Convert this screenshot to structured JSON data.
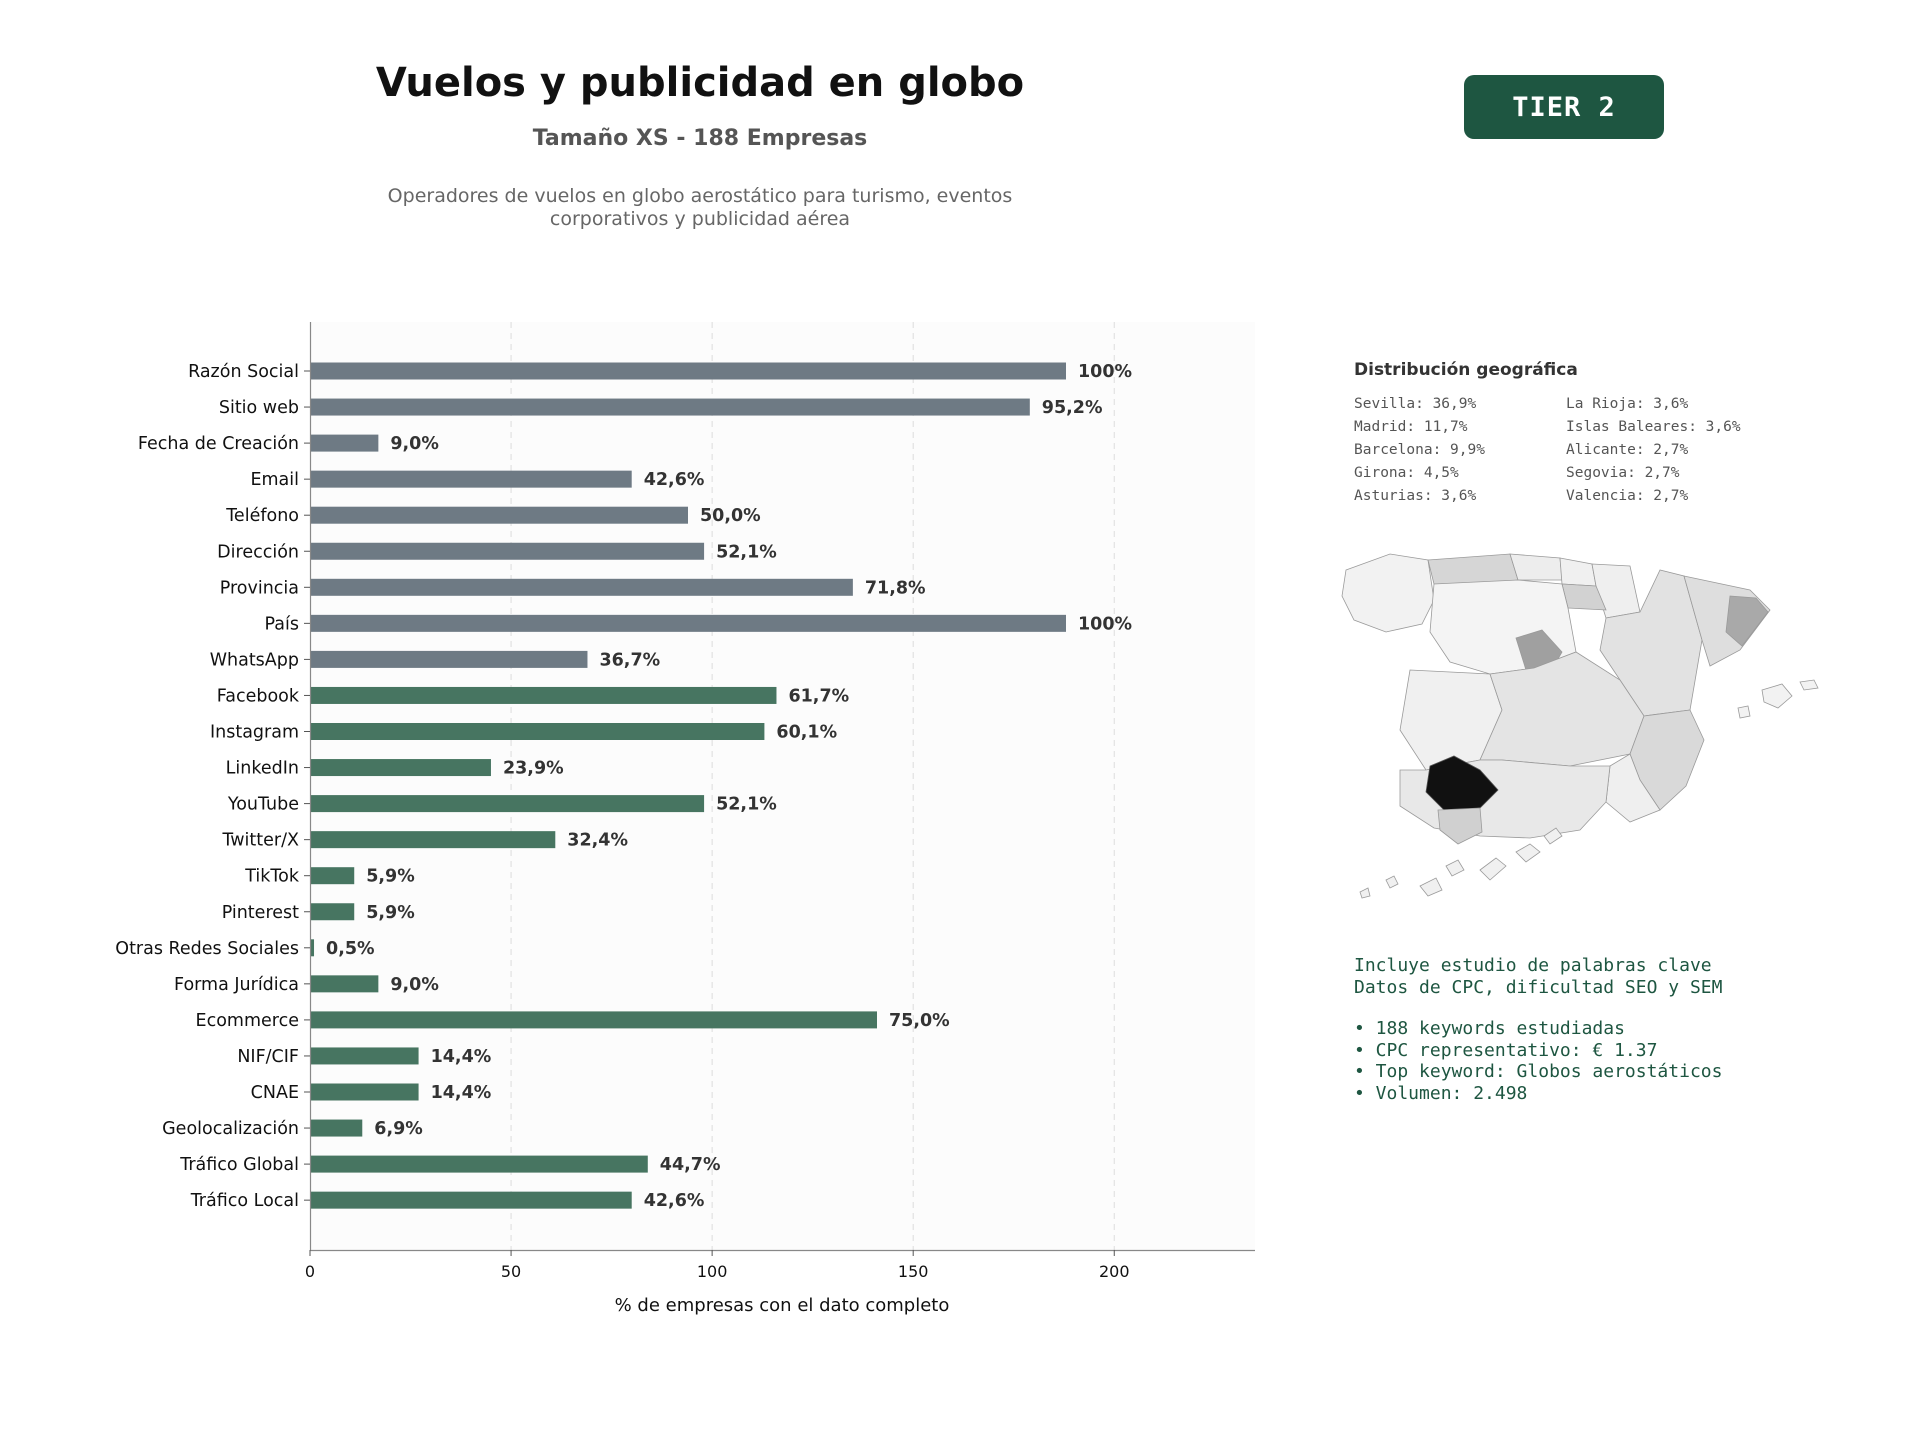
{
  "header": {
    "title": "Vuelos y publicidad en globo",
    "subtitle": "Tamaño XS - 188 Empresas",
    "description": "Operadores de vuelos en globo aerostático para turismo, eventos corporativos y publicidad aérea",
    "tier_label": "TIER 2"
  },
  "colors": {
    "basic_bar": "#6e7a84",
    "digital_bar": "#477561",
    "accent": "#1e5641"
  },
  "chart_data": {
    "type": "bar",
    "orientation": "horizontal",
    "categories": [
      "Razón Social",
      "Sitio web",
      "Fecha de Creación",
      "Email",
      "Teléfono",
      "Dirección",
      "Provincia",
      "País",
      "WhatsApp",
      "Facebook",
      "Instagram",
      "LinkedIn",
      "YouTube",
      "Twitter/X",
      "TikTok",
      "Pinterest",
      "Otras Redes Sociales",
      "Forma Jurídica",
      "Ecommerce",
      "NIF/CIF",
      "CNAE",
      "Geolocalización",
      "Tráfico Global",
      "Tráfico Local"
    ],
    "values": [
      188,
      179,
      17,
      80,
      94,
      98,
      135,
      188,
      69,
      116,
      113,
      45,
      98,
      61,
      11,
      11,
      1,
      17,
      141,
      27,
      27,
      13,
      84,
      80
    ],
    "value_labels": [
      "100%",
      "95,2%",
      "9,0%",
      "42,6%",
      "50,0%",
      "52,1%",
      "71,8%",
      "100%",
      "36,7%",
      "61,7%",
      "60,1%",
      "23,9%",
      "52,1%",
      "32,4%",
      "5,9%",
      "5,9%",
      "0,5%",
      "9,0%",
      "75,0%",
      "14,4%",
      "14,4%",
      "6,9%",
      "44,7%",
      "42,6%"
    ],
    "color_groups": [
      "basic",
      "basic",
      "basic",
      "basic",
      "basic",
      "basic",
      "basic",
      "basic",
      "basic",
      "digital",
      "digital",
      "digital",
      "digital",
      "digital",
      "digital",
      "digital",
      "digital",
      "digital",
      "digital",
      "digital",
      "digital",
      "digital",
      "digital",
      "digital"
    ],
    "xlabel": "% de empresas con el dato completo",
    "ylabel": "",
    "xlim": [
      0,
      235
    ],
    "xticks": [
      0,
      50,
      100,
      150,
      200
    ],
    "grid": "vertical dashed"
  },
  "geo": {
    "title": "Distribución geográfica",
    "items": [
      "Sevilla: 36,9%",
      "La Rioja: 3,6%",
      "Madrid: 11,7%",
      "Islas Baleares: 3,6%",
      "Barcelona: 9,9%",
      "Alicante: 2,7%",
      "Girona: 4,5%",
      "Segovia: 2,7%",
      "Asturias: 3,6%",
      "Valencia: 2,7%"
    ]
  },
  "map": {
    "type": "choropleth",
    "region": "Spain provinces",
    "high_color": "#111111",
    "low_color": "#f2f2f2"
  },
  "keywords": {
    "line1": "Incluye estudio de palabras clave",
    "line2": "Datos de CPC, dificultad SEO y SEM",
    "bullets": [
      "• 188 keywords estudiadas",
      "• CPC representativo: € 1.37",
      "• Top keyword: Globos aerostáticos",
      "• Volumen: 2.498"
    ]
  }
}
